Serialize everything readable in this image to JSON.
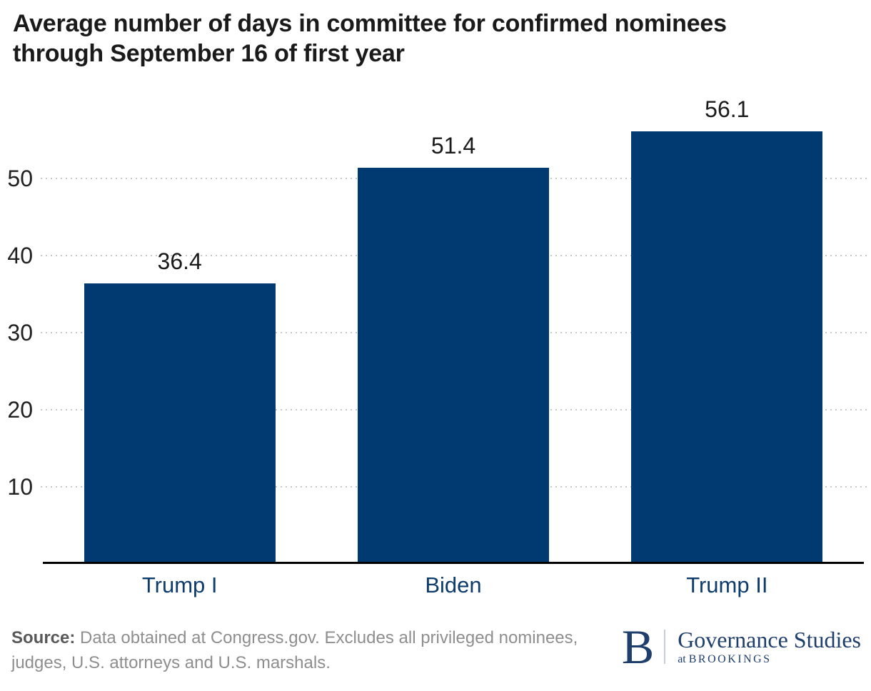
{
  "header": {
    "title_lines": [
      "Average number of days in committee for confirmed nominees",
      "through September 16 of first year"
    ]
  },
  "chart_data": {
    "type": "bar",
    "title": "Average number of days in committee for confirmed nominees through September 16 of first year",
    "categories": [
      "Trump I",
      "Biden",
      "Trump II"
    ],
    "values": [
      36.4,
      51.4,
      56.1
    ],
    "value_labels": [
      "36.4",
      "51.4",
      "56.1"
    ],
    "xlabel": "",
    "ylabel": "",
    "ylim": [
      0,
      60
    ],
    "yticks": [
      10,
      20,
      30,
      40,
      50
    ],
    "grid": "horizontal dotted",
    "legend": "none",
    "bar_color": "#003a70",
    "category_label_color": "#0d3c6c",
    "value_label_color": "#1a1a1a",
    "gridline_color": "#c8c8c8",
    "axis_line_color": "#000000"
  },
  "footer": {
    "source_label": "Source:",
    "source_text": "Data obtained at Congress.gov. Excludes all privileged nominees, judges, U.S. attorneys and U.S. marshals.",
    "logo": {
      "mark": "B",
      "program": "Governance Studies",
      "sub_prefix": "at",
      "sub_name": "BROOKINGS",
      "color": "#1e3e6c"
    }
  }
}
